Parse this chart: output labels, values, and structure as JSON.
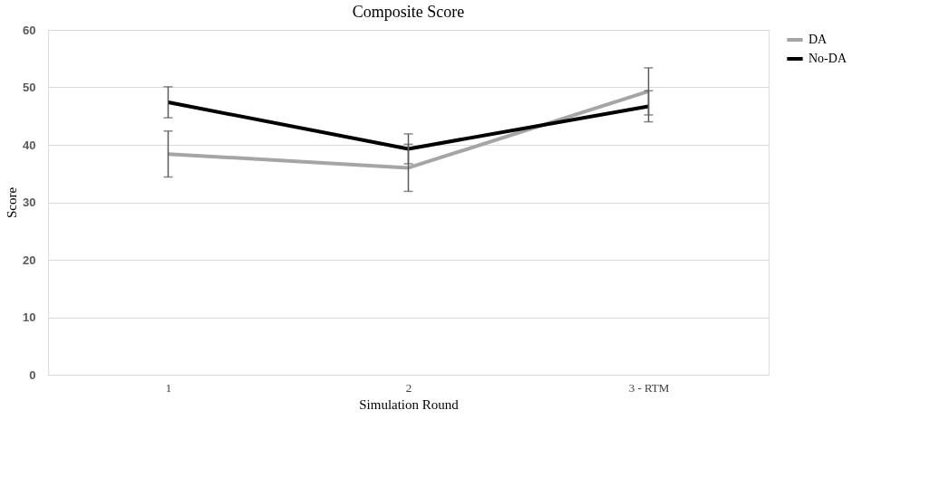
{
  "chart_data": {
    "type": "line",
    "title": "Composite Score",
    "xlabel": "Simulation Round",
    "ylabel": "Score",
    "categories": [
      "1",
      "2",
      "3 - RTM"
    ],
    "series": [
      {
        "name": "DA",
        "color": "#a5a5a5",
        "values": [
          38.4,
          36.0,
          49.3
        ],
        "errors": [
          4.0,
          4.1,
          4.1
        ]
      },
      {
        "name": "No-DA",
        "color": "#000000",
        "values": [
          47.4,
          39.3,
          46.7
        ],
        "errors": [
          2.7,
          2.6,
          2.7
        ]
      }
    ],
    "ylim": [
      0,
      60
    ],
    "yticks": [
      0,
      10,
      20,
      30,
      40,
      50,
      60
    ],
    "grid": "y",
    "legend": "right",
    "marker": "none",
    "line_style": "solid"
  }
}
